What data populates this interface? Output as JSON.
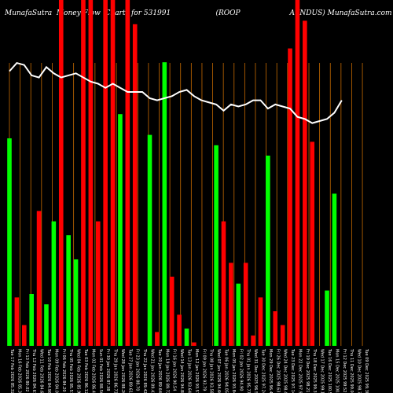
{
  "title": "MunafaSutra  Money Flow  Charts for 531991                    (ROOP                      A INDUS) MunafaSutra.com",
  "chart_data": {
    "type": "bar",
    "title": "MunafaSutra  Money Flow  Charts for 531991                    (ROOP                      A INDUS) MunafaSutra.com",
    "xlabel": "",
    "ylabel": "",
    "ylim": [
      0,
      100
    ],
    "grid": true,
    "colors": {
      "positive": "#00ff00",
      "negative": "#ff0000",
      "line": "#ffffff",
      "grid": "#c66a00",
      "background": "#000000"
    },
    "categories": [
      "Tue 17 Feb 2026 85.32",
      "Mon 16 Feb 2026 85.33",
      "Fri 13 Feb 2026 80.02",
      "Thu 12 Feb 2026 84.61",
      "Wed 11 Feb 2026 84.62",
      "Tue 10 Feb 2026 84.98",
      "Mon 09 Feb 2026 84.05",
      "Fri 06 Feb 2026 84.20",
      "Thu 05 Feb 2026 85.51",
      "Wed 04 Feb 2026 85.92",
      "Tue 03 Feb 2026 86.12",
      "Mon 02 Feb 2026 86.42",
      "Sun 01 Feb 2026 88.56",
      "Fri 30 Jan 2026 87.38",
      "Thu 29 Jan 2026 86.73",
      "Wed 28 Jan 2026 88.20",
      "Tue 27 Jan 2026 89.61",
      "Fri 23 Jan 2026 88.70",
      "Thu 22 Jan 2026 89.42",
      "Wed 21 Jan 2026 89.43",
      "Tue 20 Jan 2026 89.64",
      "Mon 19 Jan 2026 89.72",
      "Fri 16 Jan 2026 90.54",
      "Wed 14 Jan 2026 94.88",
      "Tue 13 Jan 2026 93.64",
      "Mon 12 Jan 2026 93.57",
      "Fri 09 Jan 2026 93.79",
      "Thu 08 Jan 2026 93.58",
      "Wed 07 Jan 2026 94.60",
      "Tue 06 Jan 2026 94.05",
      "Mon 05 Jan 2026 93.84",
      "Fri 02 Jan 2026 94.90",
      "Thu 01 Jan 2026 95.77",
      "Wed 31 Dec 2025 96.52",
      "Tue 30 Dec 2025 97.24",
      "Mon 29 Dec 2025 96.41",
      "Fri 26 Dec 2025 98.63",
      "Wed 24 Dec 2025 98.46",
      "Tue 23 Dec 2025 97.14",
      "Mon 22 Dec 2025 97.90",
      "Fri 19 Dec 2025 98.21",
      "Thu 18 Dec 2025 99.31",
      "Wed 17 Dec 2025 99.13",
      "Tue 16 Dec 2025 100.55",
      "Mon 15 Dec 2025 100.86",
      "Fri 12 Dec 2025 99.52",
      "Thu 11 Dec 2025 99.04",
      "Wed 10 Dec 2025 98.72",
      "Tue 09 Dec 2025 99.30",
      "Mon 08 Dec 2025 98.06"
    ],
    "bar_values": [
      60,
      14,
      6,
      15,
      39,
      12,
      36,
      100,
      32,
      25,
      100,
      100,
      36,
      100,
      100,
      67,
      100,
      93,
      0,
      61,
      4,
      82,
      20,
      9,
      5,
      1,
      0,
      0,
      58,
      36,
      24,
      18,
      24,
      3,
      14,
      55,
      10,
      6,
      86,
      100,
      94,
      59,
      0,
      16,
      44,
      0,
      0,
      0,
      0,
      0
    ],
    "bar_colors": [
      "green",
      "red",
      "red",
      "green",
      "red",
      "green",
      "green",
      "red",
      "green",
      "green",
      "red",
      "red",
      "red",
      "red",
      "red",
      "green",
      "red",
      "red",
      "green",
      "green",
      "red",
      "green",
      "red",
      "red",
      "green",
      "red",
      "green",
      "red",
      "green",
      "red",
      "red",
      "green",
      "red",
      "red",
      "red",
      "green",
      "red",
      "red",
      "red",
      "red",
      "red",
      "red",
      "red",
      "green",
      "green",
      "red",
      "red",
      "red",
      "red",
      "red"
    ],
    "line_values": [
      74,
      78,
      77,
      72,
      71,
      76,
      73,
      71,
      72,
      73,
      71,
      69,
      68,
      66,
      68,
      66,
      64,
      64,
      64,
      61,
      60,
      61,
      62,
      64,
      65,
      62,
      60,
      59,
      58,
      55,
      58,
      57,
      58,
      60,
      60,
      56,
      58,
      57,
      56,
      52,
      51,
      49,
      50,
      51,
      54,
      60,
      0,
      0,
      0,
      0
    ]
  }
}
